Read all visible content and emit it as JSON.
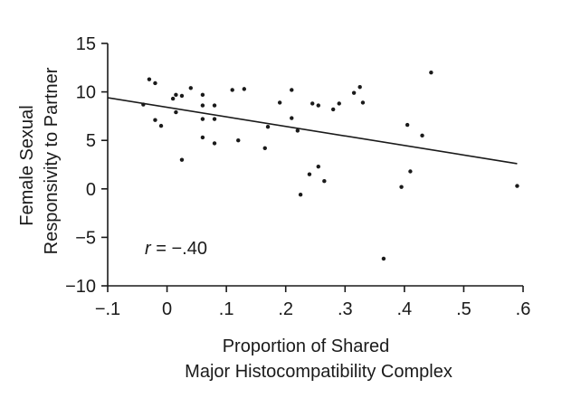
{
  "chart_data": {
    "type": "scatter",
    "title": "",
    "xlabel_lines": [
      "Proportion of Shared",
      "Major Histocompatibility Complex"
    ],
    "ylabel_lines": [
      "Female Sexual",
      "Responsivity to Partner"
    ],
    "xlim": [
      -0.1,
      0.6
    ],
    "ylim": [
      -10,
      15
    ],
    "x_ticks": [
      -0.1,
      0,
      0.1,
      0.2,
      0.3,
      0.4,
      0.5,
      0.6
    ],
    "x_tick_labels": [
      "−.1",
      "0",
      ".1",
      ".2",
      ".3",
      ".4",
      ".5",
      ".6"
    ],
    "y_ticks": [
      -10,
      -5,
      0,
      5,
      10,
      15
    ],
    "y_tick_labels": [
      "−10",
      "−5",
      "0",
      "5",
      "10",
      "15"
    ],
    "grid": false,
    "annotation": {
      "r_symbol": "r",
      "r_value": " = −.40"
    },
    "trendline": {
      "x": [
        -0.1,
        0.59
      ],
      "y": [
        9.4,
        2.6
      ]
    },
    "points": [
      {
        "x": -0.04,
        "y": 8.7
      },
      {
        "x": -0.03,
        "y": 11.3
      },
      {
        "x": -0.02,
        "y": 10.9
      },
      {
        "x": -0.02,
        "y": 7.1
      },
      {
        "x": -0.01,
        "y": 6.5
      },
      {
        "x": 0.01,
        "y": 9.3
      },
      {
        "x": 0.015,
        "y": 9.7
      },
      {
        "x": 0.015,
        "y": 7.9
      },
      {
        "x": 0.025,
        "y": 9.6
      },
      {
        "x": 0.025,
        "y": 3.0
      },
      {
        "x": 0.04,
        "y": 10.4
      },
      {
        "x": 0.06,
        "y": 9.7
      },
      {
        "x": 0.06,
        "y": 8.6
      },
      {
        "x": 0.06,
        "y": 7.2
      },
      {
        "x": 0.06,
        "y": 5.3
      },
      {
        "x": 0.08,
        "y": 8.6
      },
      {
        "x": 0.08,
        "y": 7.2
      },
      {
        "x": 0.08,
        "y": 4.7
      },
      {
        "x": 0.11,
        "y": 10.2
      },
      {
        "x": 0.13,
        "y": 10.3
      },
      {
        "x": 0.12,
        "y": 5.0
      },
      {
        "x": 0.165,
        "y": 4.2
      },
      {
        "x": 0.17,
        "y": 6.4
      },
      {
        "x": 0.19,
        "y": 8.9
      },
      {
        "x": 0.21,
        "y": 10.2
      },
      {
        "x": 0.21,
        "y": 7.3
      },
      {
        "x": 0.22,
        "y": 6.0
      },
      {
        "x": 0.225,
        "y": -0.6
      },
      {
        "x": 0.24,
        "y": 1.5
      },
      {
        "x": 0.245,
        "y": 8.8
      },
      {
        "x": 0.255,
        "y": 8.6
      },
      {
        "x": 0.255,
        "y": 2.3
      },
      {
        "x": 0.265,
        "y": 0.8
      },
      {
        "x": 0.28,
        "y": 8.2
      },
      {
        "x": 0.29,
        "y": 8.8
      },
      {
        "x": 0.315,
        "y": 9.9
      },
      {
        "x": 0.325,
        "y": 10.5
      },
      {
        "x": 0.33,
        "y": 8.9
      },
      {
        "x": 0.365,
        "y": -7.2
      },
      {
        "x": 0.395,
        "y": 0.2
      },
      {
        "x": 0.405,
        "y": 6.6
      },
      {
        "x": 0.41,
        "y": 1.8
      },
      {
        "x": 0.43,
        "y": 5.5
      },
      {
        "x": 0.445,
        "y": 12.0
      },
      {
        "x": 0.59,
        "y": 0.3
      }
    ]
  }
}
